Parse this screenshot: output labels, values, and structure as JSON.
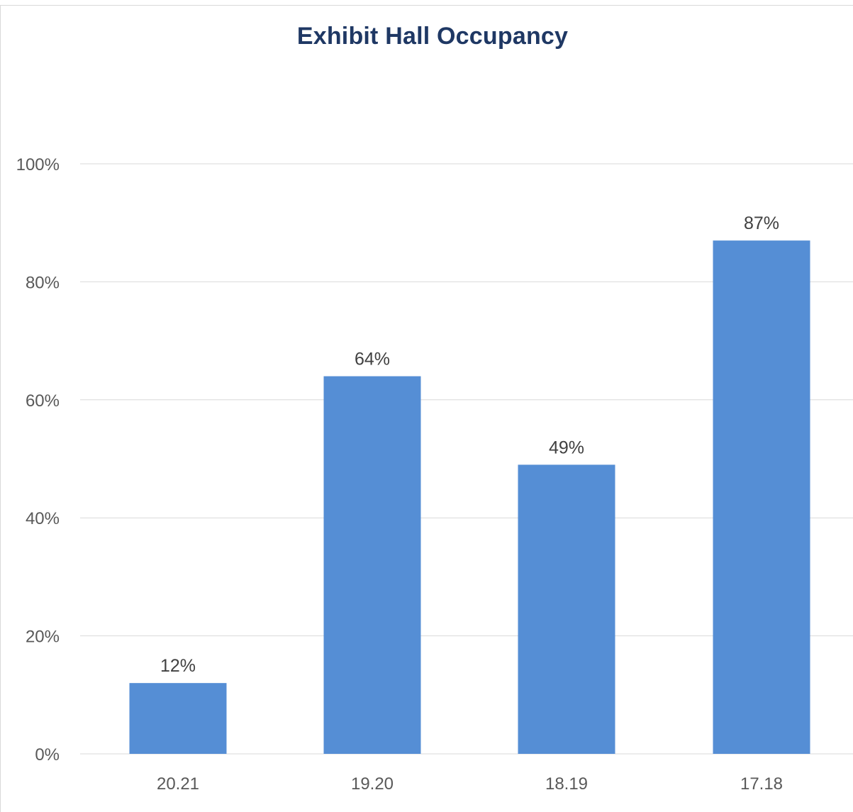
{
  "chart_data": {
    "type": "bar",
    "title": "Exhibit Hall Occupancy",
    "xlabel": "",
    "ylabel": "",
    "categories": [
      "20.21",
      "19.20",
      "18.19",
      "17.18"
    ],
    "values": [
      12,
      64,
      49,
      87
    ],
    "data_labels": [
      "12%",
      "64%",
      "49%",
      "87%"
    ],
    "ylim": [
      0,
      100
    ],
    "y_ticks": [
      0,
      20,
      40,
      60,
      80,
      100
    ],
    "y_tick_labels": [
      "0%",
      "20%",
      "40%",
      "60%",
      "80%",
      "100%"
    ],
    "grid": true,
    "legend": "none",
    "bar_color": "#558ed5",
    "grid_color": "#d9d9d9"
  }
}
